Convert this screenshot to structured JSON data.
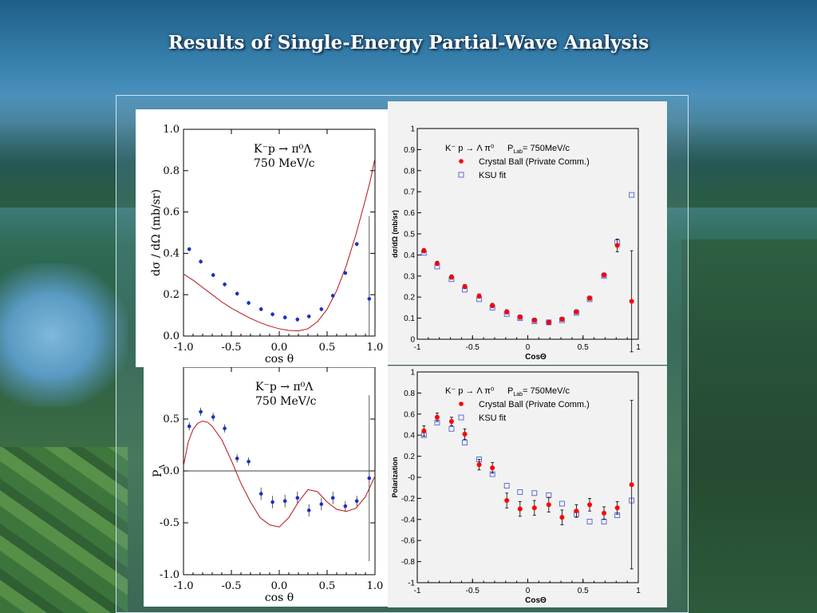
{
  "slide": {
    "title": "Results of Single-Energy Partial-Wave Analysis"
  },
  "chart_data": [
    {
      "id": "tl",
      "type": "scatter",
      "reaction": "K⁻p → π⁰Λ",
      "energy": "750 MeV/c",
      "xlabel": "cos θ",
      "ylabel": "dσ / dΩ  (mb/sr)",
      "xlim": [
        -1.0,
        1.0
      ],
      "ylim": [
        0.0,
        1.0
      ],
      "xticks": [
        -1.0,
        -0.5,
        0.0,
        0.5,
        1.0
      ],
      "xtick_labels": [
        "-1.0",
        "-0.5",
        "0.0",
        "0.5",
        "1.0"
      ],
      "yticks": [
        0.0,
        0.2,
        0.4,
        0.6,
        0.8,
        1.0
      ],
      "ytick_labels": [
        "0.0",
        "0.2",
        "0.4",
        "0.6",
        "0.8",
        "1.0"
      ],
      "points": {
        "x": [
          -0.94,
          -0.82,
          -0.69,
          -0.57,
          -0.44,
          -0.32,
          -0.19,
          -0.07,
          0.06,
          0.19,
          0.31,
          0.44,
          0.56,
          0.69,
          0.81,
          0.94
        ],
        "y": [
          0.42,
          0.36,
          0.295,
          0.25,
          0.205,
          0.16,
          0.13,
          0.105,
          0.09,
          0.08,
          0.095,
          0.13,
          0.195,
          0.305,
          0.445,
          0.18
        ],
        "err": [
          0.01,
          0.01,
          0.01,
          0.01,
          0.01,
          0.01,
          0.01,
          0.01,
          0.01,
          0.01,
          0.01,
          0.01,
          0.01,
          0.01,
          0.01,
          0.4
        ],
        "color": "#1a2fc8"
      },
      "curve": {
        "x": [
          -1.0,
          -0.9,
          -0.8,
          -0.7,
          -0.6,
          -0.5,
          -0.4,
          -0.3,
          -0.2,
          -0.1,
          0.0,
          0.1,
          0.2,
          0.3,
          0.4,
          0.5,
          0.6,
          0.7,
          0.8,
          0.9,
          0.95,
          1.0
        ],
        "y": [
          0.3,
          0.27,
          0.235,
          0.2,
          0.165,
          0.135,
          0.11,
          0.085,
          0.065,
          0.048,
          0.035,
          0.027,
          0.025,
          0.035,
          0.07,
          0.13,
          0.22,
          0.34,
          0.49,
          0.66,
          0.75,
          0.86
        ],
        "color": "#b5131a"
      }
    },
    {
      "id": "bl",
      "type": "scatter",
      "reaction": "K⁻p → π⁰Λ",
      "energy": "750 MeV/c",
      "xlabel": "cos θ",
      "ylabel": "P",
      "ylabel_sub": "Λ",
      "xlim": [
        -1.0,
        1.0
      ],
      "ylim": [
        -1.0,
        1.0
      ],
      "xticks": [
        -1.0,
        -0.5,
        0.0,
        0.5,
        1.0
      ],
      "xtick_labels": [
        "-1.0",
        "-0.5",
        "0.0",
        "0.5",
        "1.0"
      ],
      "yticks": [
        -1.0,
        -0.5,
        0.0,
        0.5
      ],
      "ytick_labels": [
        "-1.0",
        "-0.5",
        "0.0",
        "0.5"
      ],
      "points": {
        "x": [
          -0.94,
          -0.82,
          -0.69,
          -0.57,
          -0.44,
          -0.32,
          -0.19,
          -0.07,
          0.06,
          0.19,
          0.31,
          0.44,
          0.56,
          0.69,
          0.81,
          0.94
        ],
        "y": [
          0.43,
          0.57,
          0.52,
          0.41,
          0.12,
          0.09,
          -0.22,
          -0.3,
          -0.29,
          -0.26,
          -0.38,
          -0.32,
          -0.26,
          -0.34,
          -0.29,
          -0.07
        ],
        "err": [
          0.04,
          0.04,
          0.04,
          0.04,
          0.04,
          0.04,
          0.06,
          0.06,
          0.06,
          0.06,
          0.06,
          0.06,
          0.06,
          0.05,
          0.05,
          0.8
        ],
        "color": "#1a2fc8"
      },
      "curve": {
        "x": [
          -1.0,
          -0.95,
          -0.9,
          -0.85,
          -0.8,
          -0.75,
          -0.7,
          -0.6,
          -0.5,
          -0.4,
          -0.3,
          -0.2,
          -0.1,
          0.0,
          0.1,
          0.2,
          0.3,
          0.4,
          0.5,
          0.6,
          0.7,
          0.8,
          0.9,
          1.0
        ],
        "y": [
          0.05,
          0.28,
          0.4,
          0.46,
          0.48,
          0.47,
          0.43,
          0.3,
          0.1,
          -0.12,
          -0.3,
          -0.45,
          -0.52,
          -0.54,
          -0.45,
          -0.3,
          -0.18,
          -0.2,
          -0.3,
          -0.37,
          -0.39,
          -0.36,
          -0.25,
          -0.05
        ],
        "color": "#b5131a"
      }
    },
    {
      "id": "tr",
      "type": "scatter",
      "title_reaction": "K⁻ p → Λ π⁰",
      "title_plab": "P",
      "title_plab_sub": "Lab",
      "title_plab_val": "= 750MeV/c",
      "legend": [
        "Crystal Ball (Private Comm.)",
        "KSU fit"
      ],
      "xlabel": "CosΘ",
      "ylabel": "dσ/dΩ (mb/sr)",
      "xlim": [
        -1.0,
        1.0
      ],
      "ylim": [
        0.0,
        1.0
      ],
      "xticks": [
        -1.0,
        -0.5,
        0.0,
        0.5,
        1.0
      ],
      "xtick_labels": [
        "-1",
        "-0.5",
        "0",
        "0.5",
        "1"
      ],
      "yticks": [
        0.0,
        0.1,
        0.2,
        0.3,
        0.4,
        0.5,
        0.6,
        0.7,
        0.8,
        0.9,
        1.0
      ],
      "ytick_labels": [
        "0",
        "0.1",
        "0.2",
        "0.3",
        "0.4",
        "0.5",
        "0.6",
        "0.7",
        "0.8",
        "0.9",
        "1"
      ],
      "data": {
        "x": [
          -0.94,
          -0.82,
          -0.69,
          -0.57,
          -0.44,
          -0.32,
          -0.19,
          -0.07,
          0.06,
          0.19,
          0.31,
          0.44,
          0.56,
          0.69,
          0.81,
          0.94
        ],
        "y": [
          0.42,
          0.36,
          0.295,
          0.25,
          0.205,
          0.16,
          0.13,
          0.105,
          0.09,
          0.08,
          0.095,
          0.13,
          0.195,
          0.305,
          0.445,
          0.18
        ],
        "err": [
          0.01,
          0.01,
          0.01,
          0.01,
          0.01,
          0.01,
          0.01,
          0.01,
          0.01,
          0.01,
          0.01,
          0.01,
          0.01,
          0.01,
          0.03,
          0.24
        ],
        "color": "#ff0000"
      },
      "fit": {
        "x": [
          -0.94,
          -0.82,
          -0.69,
          -0.57,
          -0.44,
          -0.32,
          -0.19,
          -0.07,
          0.06,
          0.19,
          0.31,
          0.44,
          0.56,
          0.69,
          0.81,
          0.94
        ],
        "y": [
          0.41,
          0.345,
          0.285,
          0.235,
          0.19,
          0.15,
          0.12,
          0.1,
          0.085,
          0.08,
          0.09,
          0.125,
          0.19,
          0.3,
          0.46,
          0.685
        ],
        "color": "#5060d8"
      }
    },
    {
      "id": "br",
      "type": "scatter",
      "title_reaction": "K⁻ p → Λ π⁰",
      "title_plab": "P",
      "title_plab_sub": "Lab",
      "title_plab_val": "= 750MeV/c",
      "legend": [
        "Crystal Ball (Private Comm.)",
        "KSU fit"
      ],
      "xlabel": "CosΘ",
      "ylabel": "Polarization",
      "xlim": [
        -1.0,
        1.0
      ],
      "ylim": [
        -1.0,
        1.0
      ],
      "xticks": [
        -1.0,
        -0.5,
        0.0,
        0.5,
        1.0
      ],
      "xtick_labels": [
        "-1",
        "-0.5",
        "0",
        "0.5",
        "1"
      ],
      "yticks": [
        -1.0,
        -0.8,
        -0.6,
        -0.4,
        -0.2,
        0.0,
        0.2,
        0.4,
        0.6,
        0.8,
        1.0
      ],
      "ytick_labels": [
        "-1",
        "-0.8",
        "-0.6",
        "-0.4",
        "-0.2",
        "-0",
        "0.2",
        "0.4",
        "0.6",
        "0.8",
        "1"
      ],
      "data": {
        "x": [
          -0.94,
          -0.82,
          -0.69,
          -0.57,
          -0.44,
          -0.32,
          -0.19,
          -0.07,
          0.06,
          0.19,
          0.31,
          0.44,
          0.56,
          0.69,
          0.81,
          0.94
        ],
        "y": [
          0.44,
          0.57,
          0.53,
          0.41,
          0.12,
          0.09,
          -0.22,
          -0.3,
          -0.29,
          -0.26,
          -0.38,
          -0.32,
          -0.26,
          -0.34,
          -0.29,
          -0.07
        ],
        "err": [
          0.05,
          0.04,
          0.04,
          0.05,
          0.05,
          0.05,
          0.07,
          0.07,
          0.07,
          0.07,
          0.07,
          0.06,
          0.06,
          0.06,
          0.06,
          0.8
        ],
        "color": "#ff0000"
      },
      "fit": {
        "x": [
          -0.94,
          -0.82,
          -0.69,
          -0.57,
          -0.44,
          -0.32,
          -0.19,
          -0.07,
          0.06,
          0.19,
          0.31,
          0.44,
          0.56,
          0.69,
          0.81,
          0.94
        ],
        "y": [
          0.4,
          0.52,
          0.46,
          0.33,
          0.17,
          0.03,
          -0.08,
          -0.14,
          -0.15,
          -0.17,
          -0.25,
          -0.35,
          -0.42,
          -0.42,
          -0.36,
          -0.22
        ],
        "color": "#5060d8"
      }
    }
  ]
}
